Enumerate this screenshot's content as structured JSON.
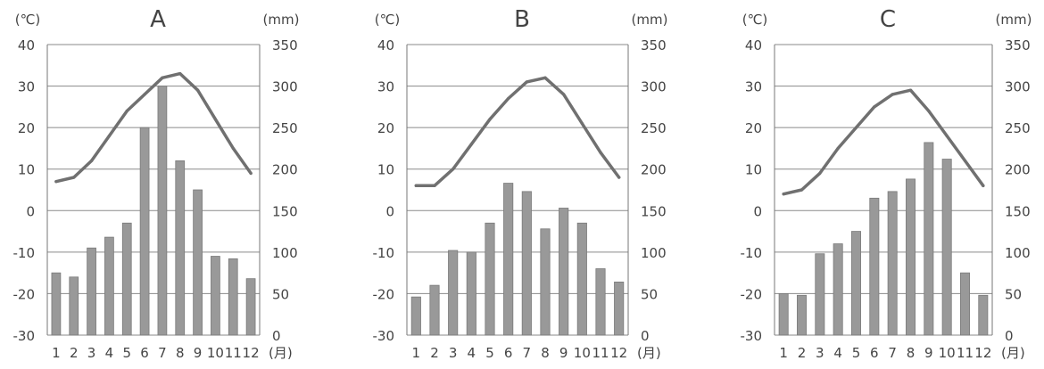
{
  "chart_data": [
    {
      "type": "bar",
      "title": "A",
      "left_unit": "(℃)",
      "right_unit": "(mm)",
      "month_unit": "(月)",
      "categories": [
        "1",
        "2",
        "3",
        "4",
        "5",
        "6",
        "7",
        "8",
        "9",
        "10",
        "11",
        "12"
      ],
      "temp_axis": {
        "min": -30,
        "max": 40,
        "ticks": [
          -30,
          -20,
          -10,
          0,
          10,
          20,
          30,
          40
        ]
      },
      "precip_axis": {
        "min": 0,
        "max": 350,
        "ticks": [
          0,
          50,
          100,
          150,
          200,
          250,
          300,
          350
        ]
      },
      "series": [
        {
          "kind": "bar",
          "values": [
            75,
            70,
            105,
            118,
            135,
            250,
            300,
            210,
            175,
            95,
            92,
            68
          ]
        },
        {
          "kind": "line",
          "values": [
            7,
            8,
            12,
            18,
            24,
            28,
            32,
            33,
            29,
            22,
            15,
            9
          ]
        }
      ],
      "grid": true,
      "colors": {
        "bar": "#999999",
        "line": "#707070"
      }
    },
    {
      "type": "bar",
      "title": "B",
      "left_unit": "(℃)",
      "right_unit": "(mm)",
      "month_unit": "(月)",
      "categories": [
        "1",
        "2",
        "3",
        "4",
        "5",
        "6",
        "7",
        "8",
        "9",
        "10",
        "11",
        "12"
      ],
      "temp_axis": {
        "min": -30,
        "max": 40,
        "ticks": [
          -30,
          -20,
          -10,
          0,
          10,
          20,
          30,
          40
        ]
      },
      "precip_axis": {
        "min": 0,
        "max": 350,
        "ticks": [
          0,
          50,
          100,
          150,
          200,
          250,
          300,
          350
        ]
      },
      "series": [
        {
          "kind": "bar",
          "values": [
            46,
            60,
            102,
            100,
            135,
            183,
            173,
            128,
            153,
            135,
            80,
            64
          ]
        },
        {
          "kind": "line",
          "values": [
            6,
            6,
            10,
            16,
            22,
            27,
            31,
            32,
            28,
            21,
            14,
            8
          ]
        }
      ],
      "grid": true,
      "colors": {
        "bar": "#999999",
        "line": "#707070"
      }
    },
    {
      "type": "bar",
      "title": "C",
      "left_unit": "(℃)",
      "right_unit": "(mm)",
      "month_unit": "(月)",
      "categories": [
        "1",
        "2",
        "3",
        "4",
        "5",
        "6",
        "7",
        "8",
        "9",
        "10",
        "11",
        "12"
      ],
      "temp_axis": {
        "min": -30,
        "max": 40,
        "ticks": [
          -30,
          -20,
          -10,
          0,
          10,
          20,
          30,
          40
        ]
      },
      "precip_axis": {
        "min": 0,
        "max": 350,
        "ticks": [
          0,
          50,
          100,
          150,
          200,
          250,
          300,
          350
        ]
      },
      "series": [
        {
          "kind": "bar",
          "values": [
            50,
            48,
            98,
            110,
            125,
            165,
            173,
            188,
            232,
            212,
            75,
            48
          ]
        },
        {
          "kind": "line",
          "values": [
            4,
            5,
            9,
            15,
            20,
            25,
            28,
            29,
            24,
            18,
            12,
            6
          ]
        }
      ],
      "grid": true,
      "colors": {
        "bar": "#999999",
        "line": "#707070"
      }
    }
  ]
}
